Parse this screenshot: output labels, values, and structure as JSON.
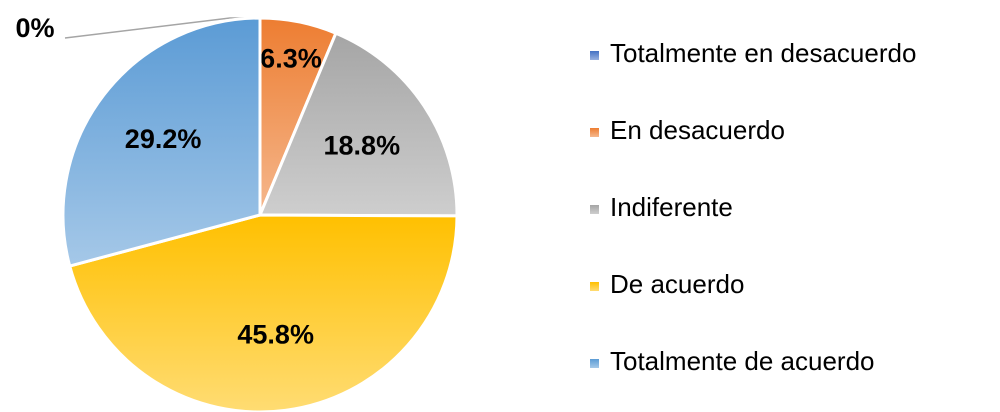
{
  "chart_data": {
    "type": "pie",
    "categories": [
      "Totalmente en desacuerdo",
      "En desacuerdo",
      "Indiferente",
      "De acuerdo",
      "Totalmente de acuerdo"
    ],
    "values": [
      0,
      6.3,
      18.8,
      45.8,
      29.2
    ],
    "value_labels": [
      "0%",
      "6.3%",
      "18.8%",
      "45.8%",
      "29.2%"
    ],
    "colors": [
      "#4472c4",
      "#ed7d31",
      "#a5a5a5",
      "#ffc000",
      "#5b9bd5"
    ],
    "legend": "right"
  }
}
